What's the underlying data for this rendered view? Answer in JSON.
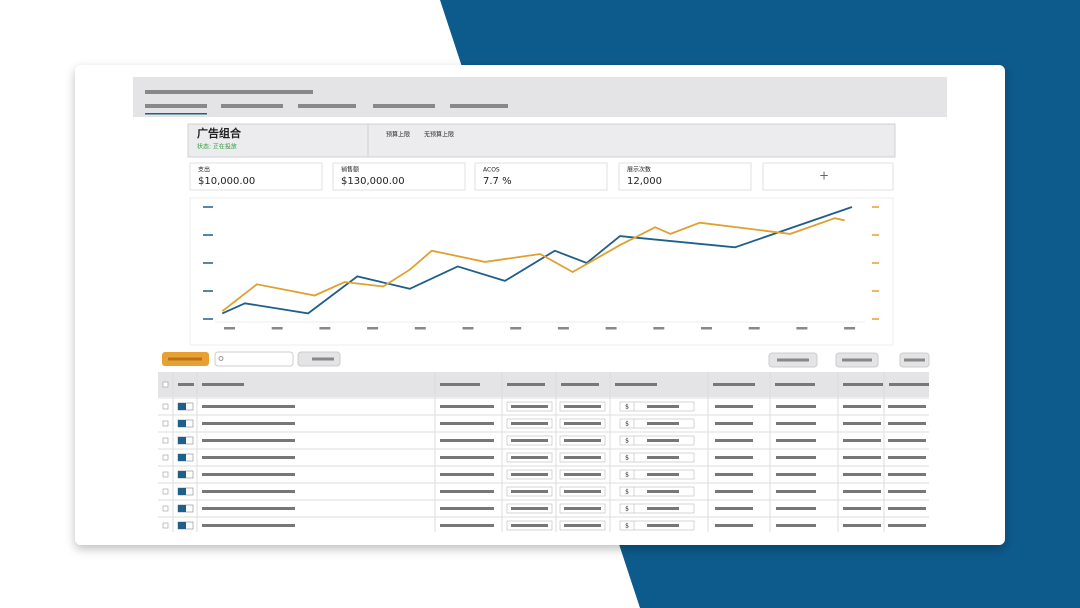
{
  "header": {
    "title": "广告组合",
    "status": "状态: 正在投放",
    "budget_label": "预算上限",
    "budget_value": "无预算上限"
  },
  "metrics": [
    {
      "label": "支出",
      "value": "$10,000.00"
    },
    {
      "label": "销售额",
      "value": "$130,000.00"
    },
    {
      "label": "ACOS",
      "value": "7.7 %"
    },
    {
      "label": "展示次数",
      "value": "12,000"
    }
  ],
  "add_metric": "+",
  "chart_data": {
    "type": "line",
    "xlim": [
      0,
      100
    ],
    "ylim": [
      0,
      100
    ],
    "yticks": [
      0,
      25,
      50,
      75,
      100
    ],
    "series": [
      {
        "color": "#1f5f8b",
        "x": [
          2.6,
          6,
          15.5,
          22.9,
          30.8,
          38,
          45.1,
          52.6,
          57.4,
          62.4,
          79.7,
          97.3
        ],
        "values": [
          5,
          14,
          5,
          38,
          27,
          47,
          34,
          61,
          50,
          74,
          64,
          100
        ]
      },
      {
        "color": "#e0a030",
        "x": [
          2.6,
          7.8,
          16.5,
          21,
          26.8,
          30.8,
          34.1,
          42.1,
          50.4,
          55.3,
          62.4,
          67.7,
          70,
          74.4,
          88,
          94.7,
          96.2
        ],
        "values": [
          7,
          31,
          21,
          33,
          29,
          44,
          61,
          51,
          58,
          42,
          66,
          82,
          76,
          86,
          76,
          90,
          88
        ]
      }
    ]
  },
  "table": {
    "rows": [
      {
        "currency": "$"
      },
      {
        "currency": "$"
      },
      {
        "currency": "$"
      },
      {
        "currency": "$"
      },
      {
        "currency": "$"
      },
      {
        "currency": "$"
      },
      {
        "currency": "$"
      },
      {
        "currency": "$"
      }
    ]
  }
}
